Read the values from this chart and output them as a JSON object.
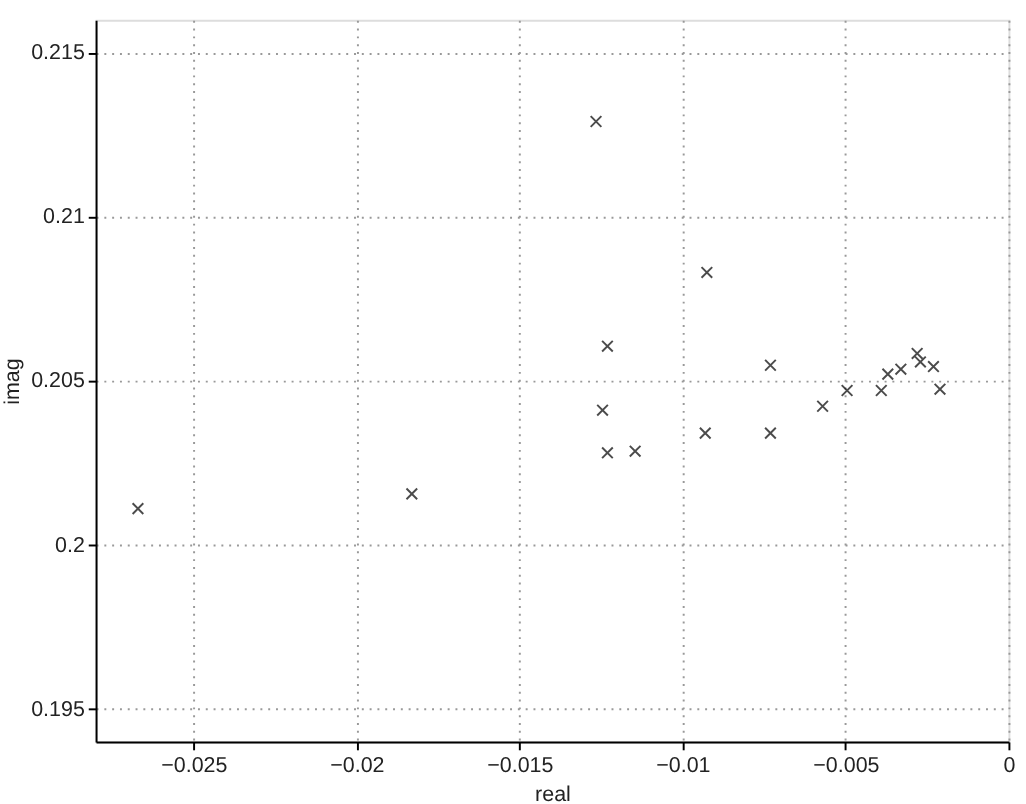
{
  "chart_data": {
    "type": "scatter",
    "xlabel": "real",
    "ylabel": "imag",
    "x": [
      -0.0267,
      -0.0183,
      -0.01265,
      -0.0123,
      -0.01245,
      -0.0123,
      -0.01145,
      -0.00925,
      -0.0093,
      -0.0073,
      -0.0073,
      -0.0057,
      -0.00495,
      -0.0039,
      -0.0037,
      -0.0033,
      -0.0028,
      -0.0027,
      -0.0023,
      -0.0021
    ],
    "series": [
      {
        "color": "#000000",
        "values": [
          0.2011,
          0.20155,
          0.2129,
          0.20605,
          0.2041,
          0.2028,
          0.20285,
          0.2083,
          0.2034,
          0.20547,
          0.2034,
          0.20422,
          0.2047,
          0.2047,
          0.2052,
          0.20535,
          0.20583,
          0.20557,
          0.20543,
          0.20474
        ]
      }
    ],
    "xlim": [
      -0.028,
      0
    ],
    "xticks": [
      -0.025,
      -0.02,
      -0.015,
      -0.01,
      -0.005,
      0
    ],
    "ylim": [
      0.194,
      0.216
    ],
    "yticks": [
      0.195,
      0.2,
      0.205,
      0.21,
      0.215
    ],
    "grid": true,
    "marker": "cross",
    "legend": false
  }
}
